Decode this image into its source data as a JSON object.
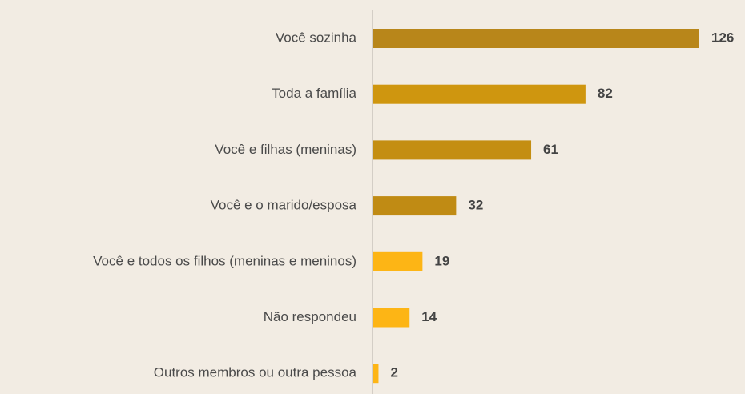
{
  "chart_data": {
    "type": "hbar",
    "categories": [
      "Você sozinha",
      "Toda a família",
      "Você e filhas (meninas)",
      "Você e o marido/esposa",
      "Você e todos os filhos (meninas e meninos)",
      "Não respondeu",
      "Outros membros ou outra pessoa"
    ],
    "values": [
      126,
      82,
      61,
      32,
      19,
      14,
      2
    ],
    "colors": [
      "#b8861a",
      "#cf960f",
      "#c48e12",
      "#c08b14",
      "#fdb515",
      "#fdb515",
      "#fdb515"
    ]
  }
}
